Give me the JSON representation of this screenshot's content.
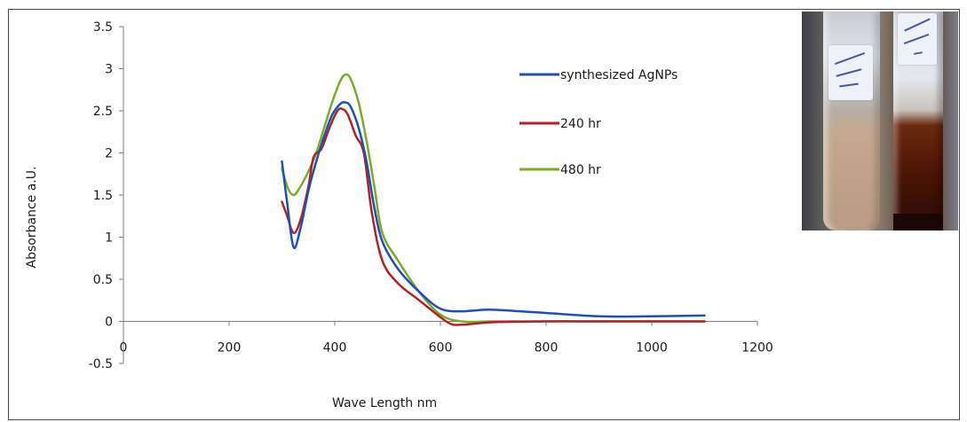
{
  "chart_data": {
    "type": "line",
    "title": "",
    "xlabel": "Wave Length  nm",
    "ylabel": "Absorbance a.U.",
    "xlim": [
      0,
      1200
    ],
    "ylim": [
      -0.5,
      3.5
    ],
    "x_ticks": [
      "0",
      "200",
      "400",
      "600",
      "800",
      "1000",
      "1200"
    ],
    "y_ticks": [
      "-0.5",
      "0",
      "0.5",
      "1",
      "1.5",
      "2",
      "2.5",
      "3",
      "3.5"
    ],
    "grid": false,
    "legend_position": "top-right",
    "series": [
      {
        "name": "synthesized AgNPs",
        "color": "#1f4fb4",
        "x": [
          300,
          310,
          322,
          335,
          350,
          365,
          380,
          395,
          410,
          420,
          430,
          445,
          460,
          475,
          490,
          520,
          560,
          600,
          640,
          690,
          750,
          800,
          900,
          1000,
          1100
        ],
        "y": [
          1.9,
          1.4,
          0.88,
          1.1,
          1.55,
          1.9,
          2.2,
          2.45,
          2.58,
          2.6,
          2.55,
          2.3,
          1.9,
          1.35,
          0.95,
          0.62,
          0.35,
          0.15,
          0.12,
          0.14,
          0.12,
          0.1,
          0.06,
          0.06,
          0.07
        ]
      },
      {
        "name": "240 hr",
        "color": "#b22222",
        "x": [
          300,
          310,
          322,
          335,
          350,
          360,
          375,
          390,
          405,
          415,
          425,
          440,
          455,
          470,
          490,
          520,
          560,
          600,
          620,
          640,
          700,
          800,
          900,
          1000,
          1100
        ],
        "y": [
          1.42,
          1.25,
          1.05,
          1.2,
          1.6,
          1.95,
          2.05,
          2.3,
          2.5,
          2.52,
          2.45,
          2.2,
          2.0,
          1.3,
          0.72,
          0.45,
          0.25,
          0.05,
          -0.03,
          -0.04,
          -0.01,
          0.0,
          0.0,
          0.0,
          0.0
        ]
      },
      {
        "name": "480 hr",
        "color": "#7aab2a",
        "x": [
          300,
          310,
          322,
          335,
          350,
          365,
          380,
          395,
          410,
          420,
          430,
          445,
          460,
          475,
          490,
          520,
          560,
          600,
          640,
          700,
          800,
          900,
          1000,
          1100
        ],
        "y": [
          1.82,
          1.6,
          1.5,
          1.6,
          1.78,
          2.0,
          2.3,
          2.6,
          2.85,
          2.93,
          2.88,
          2.6,
          2.15,
          1.6,
          1.05,
          0.72,
          0.35,
          0.08,
          0.0,
          0.0,
          0.0,
          0.0,
          0.0,
          0.0
        ]
      }
    ]
  },
  "photo": {
    "label_left": "27/4/15 Cu 22",
    "label_right": "27/4/15 16:40 3"
  }
}
